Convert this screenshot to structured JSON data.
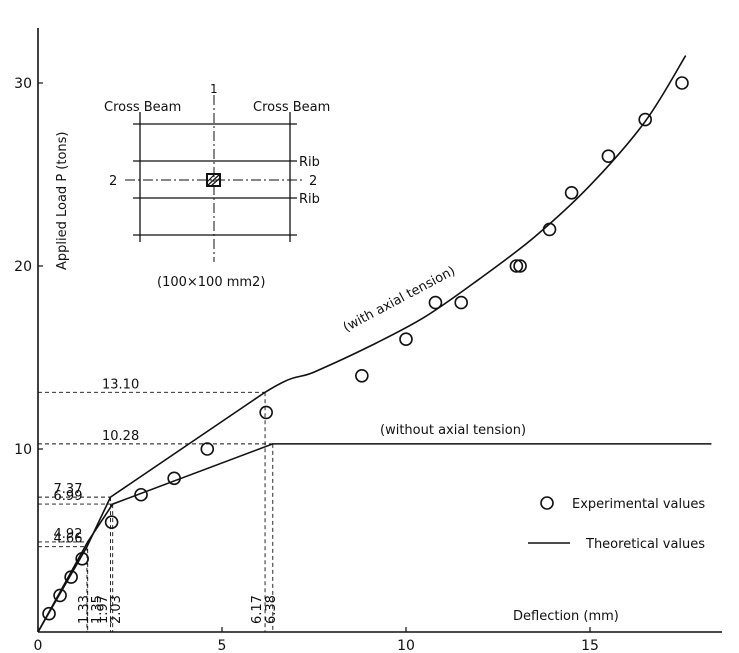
{
  "chart_data": {
    "type": "line",
    "xlabel": "Deflection (mm)",
    "ylabel": "Applied Load P (tons)",
    "xlim": [
      0,
      18.5
    ],
    "ylim": [
      0,
      33
    ],
    "x_ticks": [
      {
        "value": 0,
        "label": "0"
      },
      {
        "value": 5,
        "label": "5"
      },
      {
        "value": 10,
        "label": "10"
      },
      {
        "value": 15,
        "label": "15"
      }
    ],
    "y_ticks": [
      {
        "value": 10,
        "label": "10"
      },
      {
        "value": 20,
        "label": "20"
      },
      {
        "value": 30,
        "label": "30"
      }
    ],
    "legend": {
      "position": "right",
      "experimental": "Experimental values",
      "theoretical": "Theoretical values"
    },
    "series": [
      {
        "name": "Theoretical values",
        "curve_label": "(with axial tension)",
        "points": [
          [
            0,
            0
          ],
          [
            1.33,
            4.66
          ],
          [
            1.97,
            7.37
          ],
          [
            6.17,
            13.1
          ],
          [
            7.5,
            14.2
          ],
          [
            9,
            15.6
          ],
          [
            10.5,
            17.2
          ],
          [
            12,
            19.3
          ],
          [
            13.5,
            21.6
          ],
          [
            15,
            24.4
          ],
          [
            16.5,
            27.9
          ],
          [
            17.6,
            31.5
          ]
        ]
      },
      {
        "name": "Theoretical values",
        "curve_label": "(without axial tension)",
        "points": [
          [
            0,
            0
          ],
          [
            1.35,
            4.92
          ],
          [
            2.03,
            6.99
          ],
          [
            6.38,
            10.28
          ],
          [
            18.3,
            10.28
          ]
        ]
      },
      {
        "name": "Experimental values",
        "points": [
          [
            0.3,
            1.0
          ],
          [
            0.6,
            2.0
          ],
          [
            0.9,
            3.0
          ],
          [
            1.2,
            4.0
          ],
          [
            2.0,
            6.0
          ],
          [
            2.8,
            7.5
          ],
          [
            3.7,
            8.4
          ],
          [
            4.6,
            10.0
          ],
          [
            6.2,
            12.0
          ],
          [
            8.8,
            14.0
          ],
          [
            10.0,
            16.0
          ],
          [
            10.8,
            18.0
          ],
          [
            11.5,
            18.0
          ],
          [
            13.0,
            20.0
          ],
          [
            13.1,
            20.0
          ],
          [
            13.9,
            22.0
          ],
          [
            14.5,
            24.0
          ],
          [
            15.5,
            26.0
          ],
          [
            16.5,
            28.0
          ],
          [
            17.5,
            30.0
          ]
        ]
      }
    ],
    "ref_lines": [
      {
        "y": 13.1,
        "x_end": 6.17,
        "y_label": "13.10",
        "x_label": "6.17"
      },
      {
        "y": 10.28,
        "x_end": 6.38,
        "y_label": "10.28",
        "x_label": "6.38"
      },
      {
        "y": 7.37,
        "x_end": 1.97,
        "y_label": "7.37",
        "x_label": "1.97"
      },
      {
        "y": 6.99,
        "x_end": 2.03,
        "y_label": "6.99",
        "x_label": "2.03"
      },
      {
        "y": 4.92,
        "x_end": 1.35,
        "y_label": "4.92",
        "x_label": "1.35"
      },
      {
        "y": 4.66,
        "x_end": 1.33,
        "y_label": "4.66",
        "x_label": "1.33"
      }
    ],
    "inset": {
      "left_label": "Cross Beam",
      "right_label": "Cross Beam",
      "rib_top": "Rib",
      "rib_bottom": "Rib",
      "axis_top": "1",
      "section_left": "2",
      "section_right": "2",
      "caption": "(100×100 mm2)"
    }
  }
}
